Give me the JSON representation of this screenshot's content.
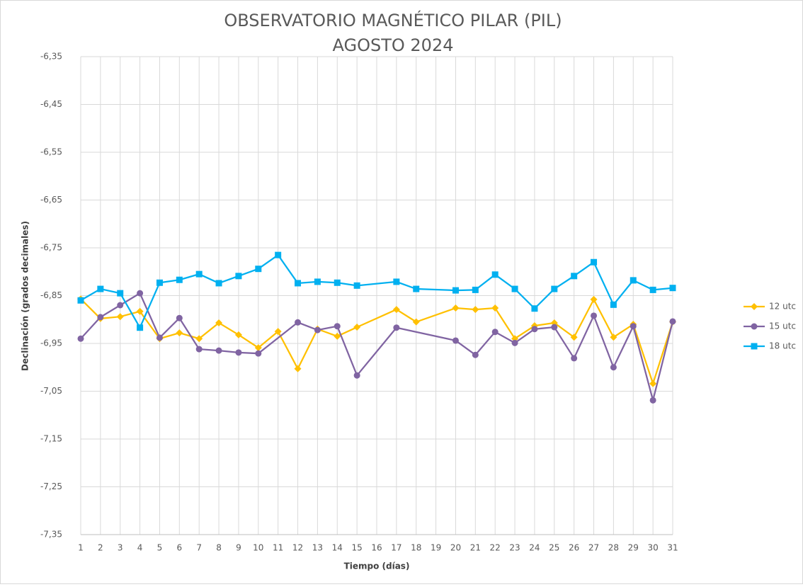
{
  "chart_data": {
    "type": "line",
    "title": "OBSERVATORIO MAGNÉTICO PILAR (PIL)",
    "subtitle": "AGOSTO 2024",
    "x_label": "Tiempo (días)",
    "y_label": "Declinación (grados decimales)",
    "xlim": [
      1,
      31
    ],
    "xticks": [
      1,
      2,
      3,
      4,
      5,
      6,
      7,
      8,
      9,
      10,
      11,
      12,
      13,
      14,
      15,
      16,
      17,
      18,
      19,
      20,
      21,
      22,
      23,
      24,
      25,
      26,
      27,
      28,
      29,
      30,
      31
    ],
    "ylim": [
      -7.35,
      -6.35
    ],
    "yticks": [
      {
        "value": -7.35,
        "label": "-7,35"
      },
      {
        "value": -7.25,
        "label": "-7,25"
      },
      {
        "value": -7.15,
        "label": "-7,15"
      },
      {
        "value": -7.05,
        "label": "-7,05"
      },
      {
        "value": -6.95,
        "label": "-6,95"
      },
      {
        "value": -6.85,
        "label": "-6,85"
      },
      {
        "value": -6.75,
        "label": "-6,75"
      },
      {
        "value": -6.65,
        "label": "-6,65"
      },
      {
        "value": -6.55,
        "label": "-6,55"
      },
      {
        "value": -6.45,
        "label": "-6,45"
      },
      {
        "value": -6.35,
        "label": "-6,35"
      }
    ],
    "grid": true,
    "legend": "right",
    "series": [
      {
        "name": "12 utc",
        "color": "#ffc000",
        "marker": "diamond",
        "x": [
          1,
          2,
          3,
          4,
          5,
          6,
          7,
          8,
          9,
          10,
          11,
          12,
          13,
          14,
          15,
          17,
          18,
          20,
          21,
          22,
          23,
          24,
          25,
          26,
          27,
          28,
          29,
          30,
          31
        ],
        "values": [
          -6.857,
          -6.898,
          -6.894,
          -6.883,
          -6.94,
          -6.928,
          -6.94,
          -6.907,
          -6.932,
          -6.959,
          -6.925,
          -7.003,
          -6.92,
          -6.935,
          -6.916,
          -6.879,
          -6.905,
          -6.876,
          -6.879,
          -6.876,
          -6.94,
          -6.913,
          -6.907,
          -6.937,
          -6.858,
          -6.937,
          -6.91,
          -7.034,
          -6.905
        ]
      },
      {
        "name": "15 utc",
        "color": "#8064a2",
        "marker": "circle",
        "x": [
          1,
          2,
          3,
          4,
          5,
          6,
          7,
          8,
          9,
          10,
          12,
          13,
          14,
          15,
          17,
          20,
          21,
          22,
          23,
          24,
          25,
          26,
          27,
          28,
          29,
          30,
          31
        ],
        "values": [
          -6.94,
          -6.895,
          -6.87,
          -6.845,
          -6.938,
          -6.897,
          -6.962,
          -6.965,
          -6.969,
          -6.971,
          -6.906,
          -6.922,
          -6.914,
          -7.017,
          -6.917,
          -6.944,
          -6.974,
          -6.926,
          -6.949,
          -6.92,
          -6.916,
          -6.981,
          -6.892,
          -7.0,
          -6.914,
          -7.069,
          -6.904
        ]
      },
      {
        "name": "18 utc",
        "color": "#00b0f0",
        "marker": "square",
        "x": [
          1,
          2,
          3,
          4,
          5,
          6,
          7,
          8,
          9,
          10,
          11,
          12,
          13,
          14,
          15,
          17,
          18,
          20,
          21,
          22,
          23,
          24,
          25,
          26,
          27,
          28,
          29,
          30,
          31
        ],
        "values": [
          -6.86,
          -6.836,
          -6.845,
          -6.917,
          -6.823,
          -6.817,
          -6.805,
          -6.824,
          -6.809,
          -6.794,
          -6.765,
          -6.824,
          -6.821,
          -6.823,
          -6.829,
          -6.821,
          -6.836,
          -6.839,
          -6.838,
          -6.806,
          -6.836,
          -6.877,
          -6.836,
          -6.809,
          -6.78,
          -6.869,
          -6.818,
          -6.838,
          -6.834
        ]
      }
    ]
  }
}
